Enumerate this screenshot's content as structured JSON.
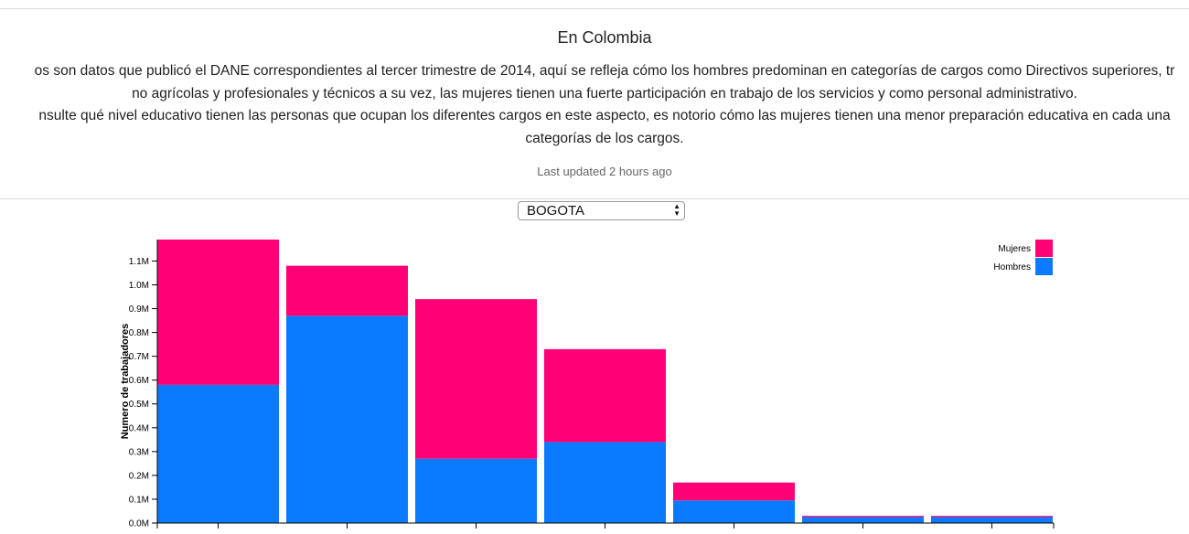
{
  "header": {
    "title": "En Colombia",
    "description_lines": [
      "os son datos que publicó el DANE correspondientes al tercer trimestre de 2014, aquí se refleja cómo los hombres predominan en categorías de cargos como Directivos superiores, tr",
      "no agrícolas y profesionales y técnicos a su vez, las mujeres tienen una fuerte participación en trabajo de los servicios y como personal administrativo.",
      "nsulte qué nivel educativo tienen las personas que ocupan los diferentes cargos en este aspecto, es notorio cómo las mujeres tienen una menor preparación educativa en cada una",
      "categorías de los cargos."
    ],
    "last_updated": "Last updated 2 hours ago"
  },
  "controls": {
    "region_select": {
      "value": "BOGOTA",
      "arrows_icon": "updown-arrows-icon"
    }
  },
  "colors": {
    "mujeres": "#FF0077",
    "hombres": "#0A7BFF"
  },
  "chart_data": {
    "type": "bar",
    "stacked": true,
    "ylabel": "Numero de trabajadores",
    "yticks": [
      "0.0M",
      "0.1M",
      "0.2M",
      "0.3M",
      "0.4M",
      "0.5M",
      "0.6M",
      "0.7M",
      "0.8M",
      "0.9M",
      "1.0M",
      "1.1M"
    ],
    "ylim": [
      0,
      1.19
    ],
    "legend_position": "top-right",
    "series": [
      {
        "name": "Hombres",
        "values": [
          0.58,
          0.87,
          0.27,
          0.34,
          0.095,
          0.025,
          0.025
        ]
      },
      {
        "name": "Mujeres",
        "values": [
          0.61,
          0.21,
          0.67,
          0.39,
          0.075,
          0.005,
          0.005
        ]
      }
    ],
    "legend": [
      {
        "name": "Mujeres",
        "color": "#FF0077"
      },
      {
        "name": "Hombres",
        "color": "#0A7BFF"
      }
    ]
  }
}
